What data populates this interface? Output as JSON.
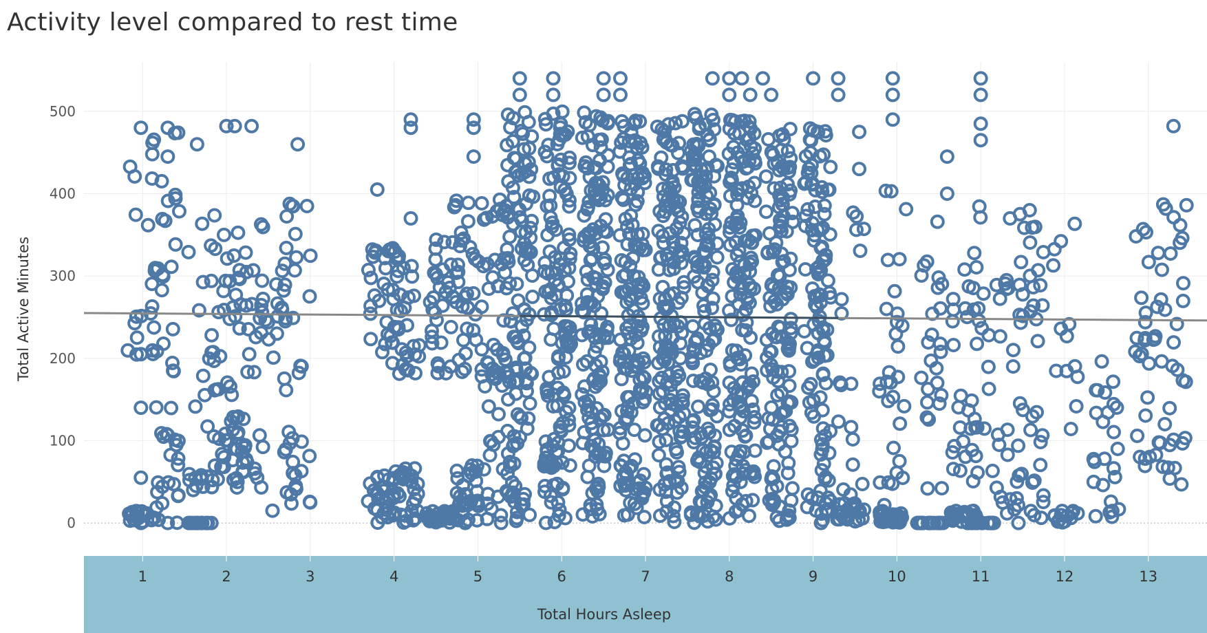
{
  "title": "Activity level compared to rest time",
  "colors": {
    "point": "#4e79a7",
    "axis_band": "#8fc1d0",
    "trend": "#888888",
    "trend_dense": "#3b4f63",
    "grid": "#ececec"
  },
  "chart_data": {
    "type": "scatter",
    "title": "Activity level compared to rest time",
    "xlabel": "Total Hours Asleep",
    "ylabel": "Total Active Minutes",
    "xlim": [
      0.3,
      13.7
    ],
    "ylim": [
      -40,
      560
    ],
    "x_ticks": [
      1,
      2,
      3,
      4,
      5,
      6,
      7,
      8,
      9,
      10,
      11,
      12,
      13
    ],
    "y_ticks": [
      0,
      100,
      200,
      300,
      400,
      500
    ],
    "grid": true,
    "marker": "open-circle",
    "trendline": {
      "x": [
        0.3,
        13.7
      ],
      "y": [
        255,
        246
      ]
    },
    "columns": [
      {
        "x": 0.98,
        "ranges": [
          [
            195,
            480
          ],
          [
            0,
            20
          ]
        ],
        "n": 40,
        "points": [
          [
            0,
            480
          ],
          [
            0,
            205
          ],
          [
            0,
            140
          ],
          [
            0,
            55
          ],
          [
            0,
            0
          ]
        ]
      },
      {
        "x": 1.3,
        "ranges": [
          [
            170,
            480
          ],
          [
            0,
            150
          ]
        ],
        "n": 45,
        "points": [
          [
            0,
            480
          ],
          [
            0,
            445
          ],
          [
            0,
            0
          ]
        ]
      },
      {
        "x": 1.7,
        "ranges": [
          [
            110,
            395
          ],
          [
            40,
            60
          ],
          [
            0,
            0
          ]
        ],
        "n": 40,
        "points": [
          [
            -0.05,
            460
          ],
          [
            0,
            0
          ]
        ]
      },
      {
        "x": 2.0,
        "ranges": [
          [
            150,
            395
          ],
          [
            40,
            130
          ]
        ],
        "n": 45,
        "points": [
          [
            0,
            482
          ],
          [
            0.1,
            482
          ],
          [
            0.3,
            482
          ]
        ]
      },
      {
        "x": 2.28,
        "ranges": [
          [
            170,
            390
          ],
          [
            40,
            130
          ]
        ],
        "n": 35,
        "points": []
      },
      {
        "x": 2.55,
        "ranges": [
          [
            190,
            345
          ]
        ],
        "n": 20,
        "points": [
          [
            0,
            15
          ]
        ]
      },
      {
        "x": 2.85,
        "ranges": [
          [
            150,
            395
          ],
          [
            0,
            120
          ]
        ],
        "n": 35,
        "points": [
          [
            0,
            460
          ]
        ]
      },
      {
        "x": 3.85,
        "ranges": [
          [
            180,
            345
          ],
          [
            0,
            60
          ]
        ],
        "n": 60,
        "points": [
          [
            -0.05,
            405
          ]
        ]
      },
      {
        "x": 4.15,
        "ranges": [
          [
            180,
            345
          ],
          [
            0,
            70
          ]
        ],
        "n": 60,
        "points": [
          [
            0.05,
            370
          ]
        ]
      },
      {
        "x": 4.55,
        "ranges": [
          [
            180,
            345
          ],
          [
            0,
            15
          ]
        ],
        "n": 60,
        "points": [
          [
            -0.35,
            490
          ],
          [
            -0.35,
            480
          ]
        ]
      },
      {
        "x": 4.85,
        "ranges": [
          [
            180,
            395
          ],
          [
            0,
            70
          ]
        ],
        "n": 70,
        "points": [
          [
            0.1,
            490
          ],
          [
            0.1,
            480
          ],
          [
            0.1,
            445
          ]
        ]
      },
      {
        "x": 5.2,
        "ranges": [
          [
            180,
            395
          ],
          [
            0,
            210
          ]
        ],
        "n": 60,
        "points": []
      },
      {
        "x": 5.5,
        "ranges": [
          [
            0,
            500
          ]
        ],
        "n": 120,
        "points": [
          [
            0,
            540
          ],
          [
            0,
            520
          ]
        ]
      },
      {
        "x": 5.95,
        "ranges": [
          [
            0,
            500
          ]
        ],
        "n": 140,
        "points": [
          [
            -0.05,
            540
          ],
          [
            -0.05,
            520
          ]
        ]
      },
      {
        "x": 6.4,
        "ranges": [
          [
            0,
            500
          ]
        ],
        "n": 150,
        "points": [
          [
            0.1,
            540
          ],
          [
            0.1,
            520
          ],
          [
            0.3,
            540
          ],
          [
            0.3,
            520
          ]
        ]
      },
      {
        "x": 6.85,
        "ranges": [
          [
            0,
            490
          ]
        ],
        "n": 160,
        "points": []
      },
      {
        "x": 7.3,
        "ranges": [
          [
            0,
            490
          ]
        ],
        "n": 160,
        "points": []
      },
      {
        "x": 7.7,
        "ranges": [
          [
            0,
            500
          ]
        ],
        "n": 160,
        "points": [
          [
            0.1,
            540
          ],
          [
            0.3,
            540
          ],
          [
            0.3,
            520
          ]
        ]
      },
      {
        "x": 8.15,
        "ranges": [
          [
            0,
            500
          ]
        ],
        "n": 160,
        "points": [
          [
            0,
            540
          ],
          [
            0.1,
            520
          ],
          [
            0.25,
            540
          ],
          [
            0.35,
            520
          ]
        ]
      },
      {
        "x": 8.6,
        "ranges": [
          [
            0,
            480
          ]
        ],
        "n": 140,
        "points": []
      },
      {
        "x": 9.05,
        "ranges": [
          [
            0,
            480
          ]
        ],
        "n": 120,
        "points": [
          [
            -0.05,
            540
          ],
          [
            0.25,
            540
          ],
          [
            0.25,
            520
          ]
        ]
      },
      {
        "x": 9.45,
        "ranges": [
          [
            0,
            400
          ],
          [
            0,
            30
          ]
        ],
        "n": 40,
        "points": [
          [
            0.1,
            475
          ],
          [
            0.1,
            430
          ]
        ]
      },
      {
        "x": 9.95,
        "ranges": [
          [
            0,
            410
          ],
          [
            0,
            15
          ]
        ],
        "n": 60,
        "points": [
          [
            0,
            540
          ],
          [
            0,
            520
          ],
          [
            0,
            490
          ]
        ]
      },
      {
        "x": 10.4,
        "ranges": [
          [
            40,
            370
          ],
          [
            0,
            0
          ]
        ],
        "n": 50,
        "points": [
          [
            0.2,
            445
          ],
          [
            0.2,
            400
          ]
        ]
      },
      {
        "x": 10.8,
        "ranges": [
          [
            50,
            370
          ],
          [
            0,
            15
          ]
        ],
        "n": 45,
        "points": []
      },
      {
        "x": 11.0,
        "ranges": [
          [
            50,
            410
          ],
          [
            0,
            0
          ]
        ],
        "n": 40,
        "points": [
          [
            0,
            540
          ],
          [
            0,
            520
          ],
          [
            0,
            485
          ],
          [
            0,
            465
          ]
        ]
      },
      {
        "x": 11.35,
        "ranges": [
          [
            180,
            300
          ],
          [
            0,
            120
          ]
        ],
        "n": 25,
        "points": [
          [
            0,
            370
          ],
          [
            0.1,
            0
          ]
        ]
      },
      {
        "x": 11.6,
        "ranges": [
          [
            220,
            400
          ],
          [
            0,
            155
          ]
        ],
        "n": 35,
        "points": []
      },
      {
        "x": 12.02,
        "ranges": [
          [
            80,
            370
          ],
          [
            0,
            15
          ]
        ],
        "n": 25,
        "points": []
      },
      {
        "x": 12.5,
        "ranges": [
          [
            0,
            200
          ]
        ],
        "n": 25,
        "points": []
      },
      {
        "x": 13.0,
        "ranges": [
          [
            40,
            365
          ]
        ],
        "n": 30,
        "points": []
      },
      {
        "x": 13.3,
        "ranges": [
          [
            40,
            390
          ]
        ],
        "n": 30,
        "points": [
          [
            0,
            482
          ]
        ]
      }
    ]
  }
}
